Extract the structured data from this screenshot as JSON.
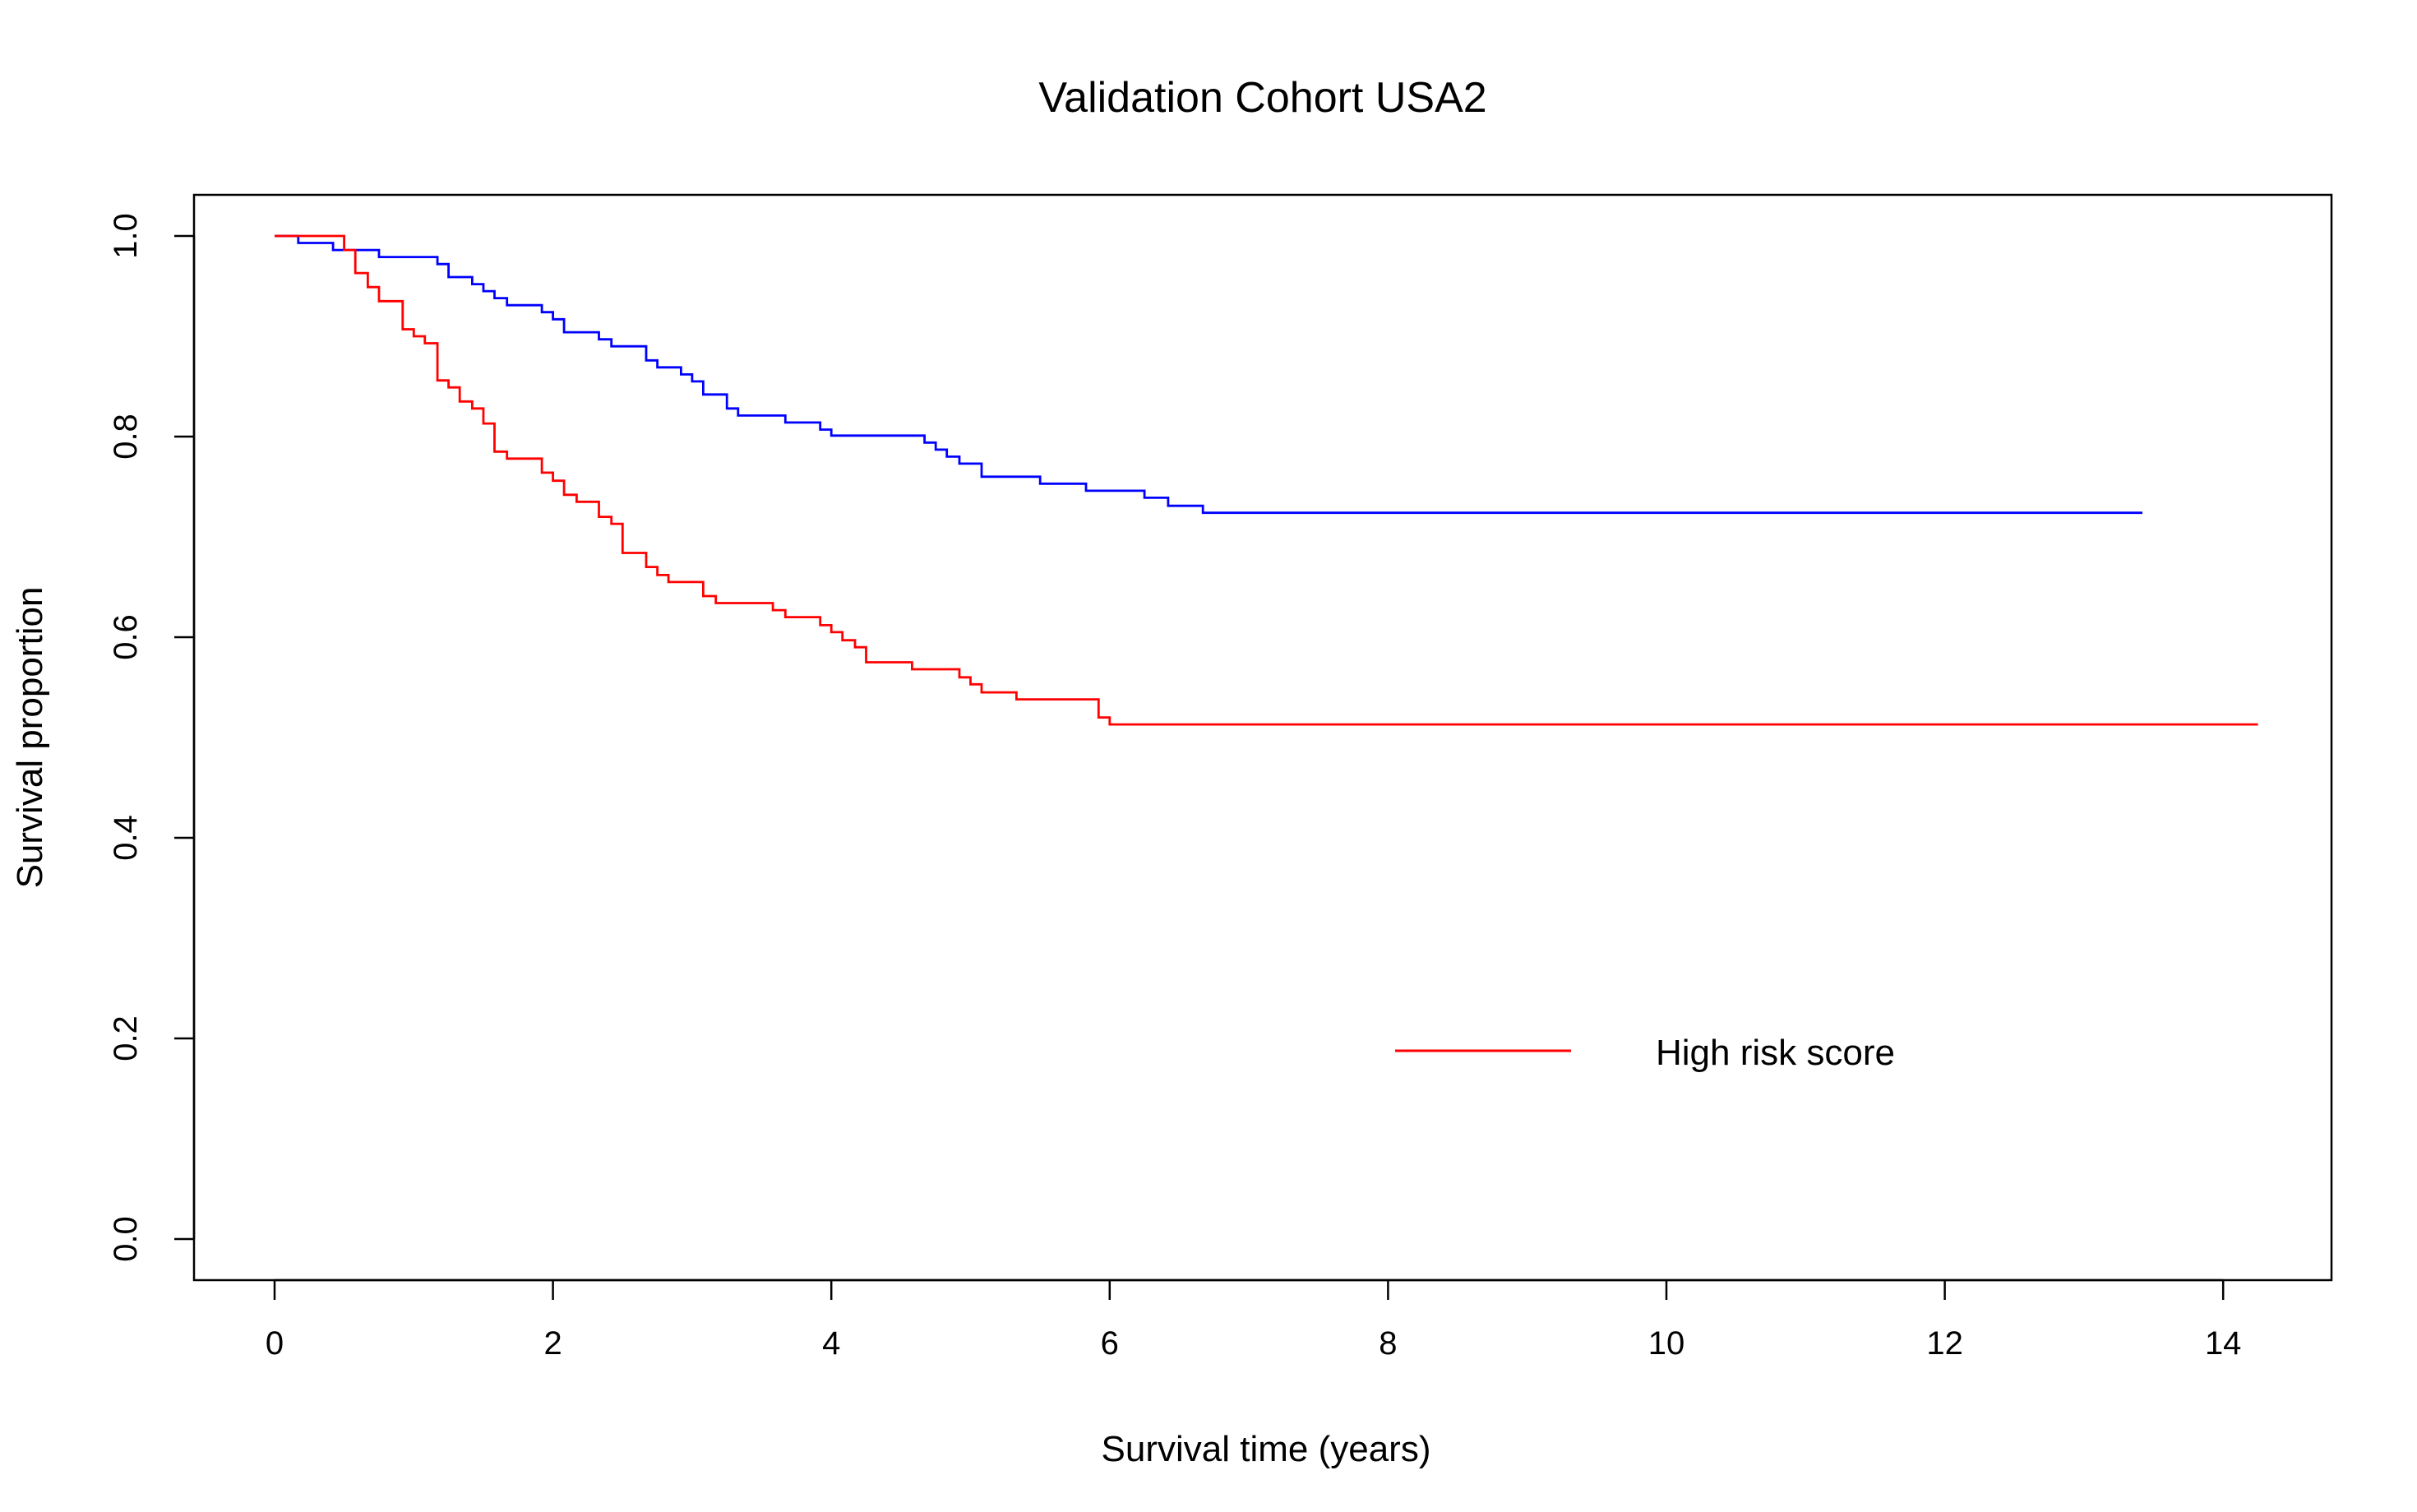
{
  "chart_data": {
    "type": "line",
    "title": "Validation Cohort USA2",
    "xlabel": "Survival time (years)",
    "ylabel": "Survival proportion",
    "xlim": [
      0,
      14
    ],
    "ylim": [
      0,
      1
    ],
    "x_ticks": [
      0,
      2,
      4,
      6,
      8,
      10,
      12,
      14
    ],
    "y_ticks": [
      0.0,
      0.2,
      0.4,
      0.6,
      0.8,
      1.0
    ],
    "x_tick_labels": [
      "0",
      "2",
      "4",
      "6",
      "8",
      "10",
      "12",
      "14"
    ],
    "y_tick_labels": [
      "0.0",
      "0.2",
      "0.4",
      "0.6",
      "0.8",
      "1.0"
    ],
    "grid": false,
    "legend": {
      "position": "bottom-right",
      "entries": [
        {
          "label": "High risk score",
          "color": "#ff0000"
        }
      ]
    },
    "series": [
      {
        "color": "#0000ff",
        "step": true,
        "points": [
          [
            0.0,
            1.0
          ],
          [
            0.17,
            0.993
          ],
          [
            0.42,
            0.986
          ],
          [
            0.75,
            0.979
          ],
          [
            1.17,
            0.972
          ],
          [
            1.25,
            0.959
          ],
          [
            1.42,
            0.952
          ],
          [
            1.5,
            0.945
          ],
          [
            1.58,
            0.938
          ],
          [
            1.67,
            0.931
          ],
          [
            1.92,
            0.924
          ],
          [
            2.0,
            0.917
          ],
          [
            2.08,
            0.904
          ],
          [
            2.33,
            0.897
          ],
          [
            2.42,
            0.89
          ],
          [
            2.67,
            0.876
          ],
          [
            2.75,
            0.869
          ],
          [
            2.92,
            0.862
          ],
          [
            3.0,
            0.855
          ],
          [
            3.08,
            0.842
          ],
          [
            3.25,
            0.828
          ],
          [
            3.33,
            0.821
          ],
          [
            3.67,
            0.814
          ],
          [
            3.92,
            0.807
          ],
          [
            4.0,
            0.801
          ],
          [
            4.67,
            0.794
          ],
          [
            4.75,
            0.787
          ],
          [
            4.83,
            0.78
          ],
          [
            4.92,
            0.773
          ],
          [
            5.08,
            0.76
          ],
          [
            5.5,
            0.753
          ],
          [
            5.83,
            0.746
          ],
          [
            6.25,
            0.739
          ],
          [
            6.42,
            0.731
          ],
          [
            6.67,
            0.724
          ],
          [
            13.42,
            0.724
          ]
        ]
      },
      {
        "color": "#ff0000",
        "step": true,
        "points": [
          [
            0.0,
            1.0
          ],
          [
            0.5,
            0.986
          ],
          [
            0.58,
            0.963
          ],
          [
            0.67,
            0.949
          ],
          [
            0.75,
            0.935
          ],
          [
            0.92,
            0.907
          ],
          [
            1.0,
            0.9
          ],
          [
            1.08,
            0.893
          ],
          [
            1.17,
            0.856
          ],
          [
            1.25,
            0.849
          ],
          [
            1.33,
            0.835
          ],
          [
            1.42,
            0.828
          ],
          [
            1.5,
            0.813
          ],
          [
            1.58,
            0.785
          ],
          [
            1.67,
            0.778
          ],
          [
            1.92,
            0.764
          ],
          [
            2.0,
            0.756
          ],
          [
            2.08,
            0.742
          ],
          [
            2.17,
            0.735
          ],
          [
            2.33,
            0.72
          ],
          [
            2.42,
            0.713
          ],
          [
            2.5,
            0.684
          ],
          [
            2.67,
            0.67
          ],
          [
            2.75,
            0.662
          ],
          [
            2.83,
            0.655
          ],
          [
            3.08,
            0.641
          ],
          [
            3.17,
            0.634
          ],
          [
            3.58,
            0.627
          ],
          [
            3.67,
            0.62
          ],
          [
            3.92,
            0.612
          ],
          [
            4.0,
            0.605
          ],
          [
            4.08,
            0.597
          ],
          [
            4.17,
            0.59
          ],
          [
            4.25,
            0.575
          ],
          [
            4.58,
            0.568
          ],
          [
            4.92,
            0.56
          ],
          [
            5.0,
            0.553
          ],
          [
            5.08,
            0.545
          ],
          [
            5.33,
            0.538
          ],
          [
            5.92,
            0.52
          ],
          [
            6.0,
            0.513
          ],
          [
            14.25,
            0.513
          ]
        ]
      }
    ]
  }
}
